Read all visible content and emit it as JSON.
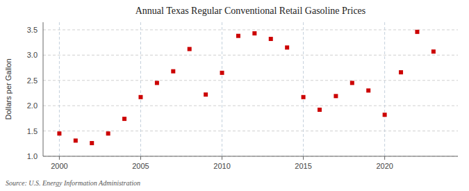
{
  "chart_data": {
    "type": "scatter",
    "title": "Annual Texas Regular Conventional Retail Gasoline Prices",
    "ylabel": "Dollars per Gallon",
    "source": "Source: U.S. Energy Information Administration",
    "x": [
      2000,
      2001,
      2002,
      2003,
      2004,
      2005,
      2006,
      2007,
      2008,
      2009,
      2010,
      2011,
      2012,
      2013,
      2014,
      2015,
      2016,
      2017,
      2018,
      2019,
      2020,
      2021,
      2022,
      2023
    ],
    "values": [
      1.45,
      1.31,
      1.26,
      1.45,
      1.74,
      2.17,
      2.45,
      2.68,
      3.12,
      2.22,
      2.65,
      3.38,
      3.43,
      3.32,
      3.15,
      2.17,
      1.92,
      2.19,
      2.45,
      2.3,
      1.82,
      2.66,
      3.46,
      3.07
    ],
    "color": "#cc0000",
    "marker": "square",
    "xlim": [
      1999,
      2024.5
    ],
    "ylim": [
      1.0,
      3.65
    ],
    "xticks": [
      2000,
      2005,
      2010,
      2015,
      2020
    ],
    "yticks": [
      {
        "value": 1.0,
        "label": "1.0"
      },
      1.5,
      {
        "value": 2.0,
        "label": "2.0"
      },
      2.5,
      {
        "value": 3.0,
        "label": "3.0"
      },
      3.5
    ],
    "grid": true
  }
}
